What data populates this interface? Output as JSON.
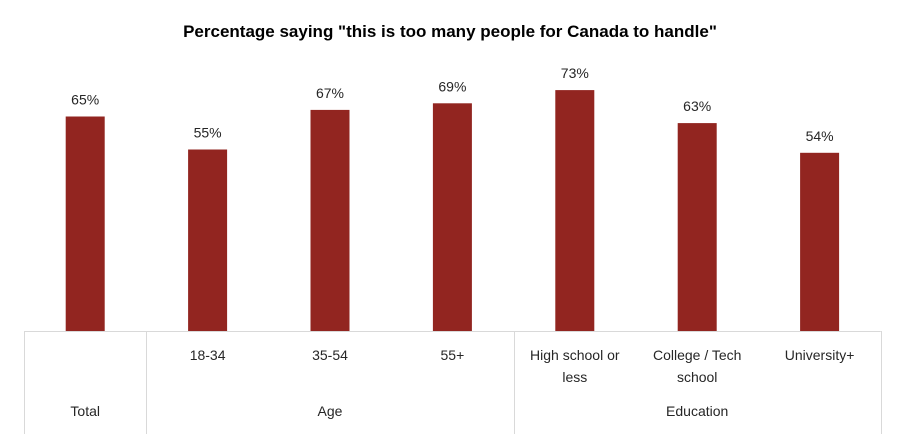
{
  "chart_data": {
    "type": "bar",
    "title": "Percentage saying \"this is too many people for Canada to handle\"",
    "categories": [
      "",
      "18-34",
      "35-54",
      "55+",
      "High school or less",
      "College / Tech school",
      "University+"
    ],
    "category_lines": [
      [
        ""
      ],
      [
        "18-34"
      ],
      [
        "35-54"
      ],
      [
        "55+"
      ],
      [
        "High school or",
        "less"
      ],
      [
        "College / Tech",
        "school"
      ],
      [
        "University+"
      ]
    ],
    "values": [
      65,
      55,
      67,
      69,
      73,
      63,
      54
    ],
    "data_labels": [
      "65%",
      "55%",
      "67%",
      "69%",
      "73%",
      "63%",
      "54%"
    ],
    "groups": [
      {
        "name": "Total",
        "span": [
          0,
          0
        ]
      },
      {
        "name": "Age",
        "span": [
          1,
          3
        ]
      },
      {
        "name": "Education",
        "span": [
          4,
          6
        ]
      }
    ],
    "ylim": [
      0,
      100
    ],
    "grid": false,
    "legend": "none",
    "bar_color": "#922520"
  }
}
